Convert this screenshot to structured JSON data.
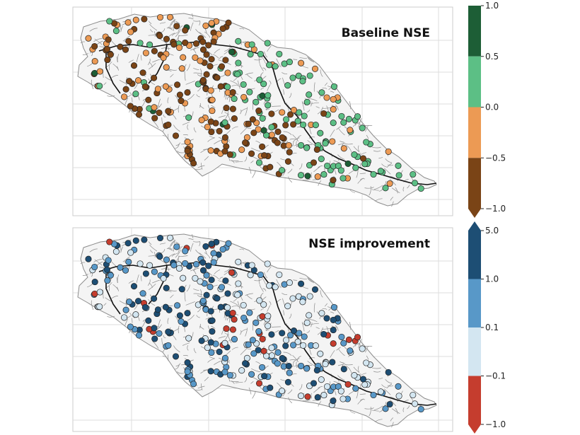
{
  "panels": [
    {
      "title": "Baseline NSE",
      "colorbar": {
        "ticks": [
          "1.0",
          "0.5",
          "0.0",
          "−0.5",
          "−1.0"
        ],
        "bins": [
          {
            "range": "0.5 to 1.0",
            "color": "#1d5e36"
          },
          {
            "range": "0.0 to 0.5",
            "color": "#5cbf85"
          },
          {
            "range": "-0.5 to 0.0",
            "color": "#ec9a54"
          },
          {
            "range": "-1.0 to -0.5",
            "color": "#7a4416"
          }
        ],
        "extend": "min"
      },
      "legend_placement": "top-right"
    },
    {
      "title": "NSE improvement",
      "colorbar": {
        "ticks": [
          "5.0",
          "1.0",
          "0.1",
          "−0.1",
          "−1.0"
        ],
        "bins": [
          {
            "range": "1.0 to 5.0",
            "color": "#1d4e74"
          },
          {
            "range": "0.1 to 1.0",
            "color": "#5898c8"
          },
          {
            "range": "-0.1 to 0.1",
            "color": "#d3e6f1"
          },
          {
            "range": "-1.0 to -0.1",
            "color": "#c53d2e"
          }
        ],
        "extend": "both"
      },
      "legend_placement": "top-right"
    }
  ],
  "colors": {
    "river_network": "#8c8c8c",
    "main_stem": "#111111",
    "grid": "#dddddd",
    "frame": "#cccccc"
  }
}
